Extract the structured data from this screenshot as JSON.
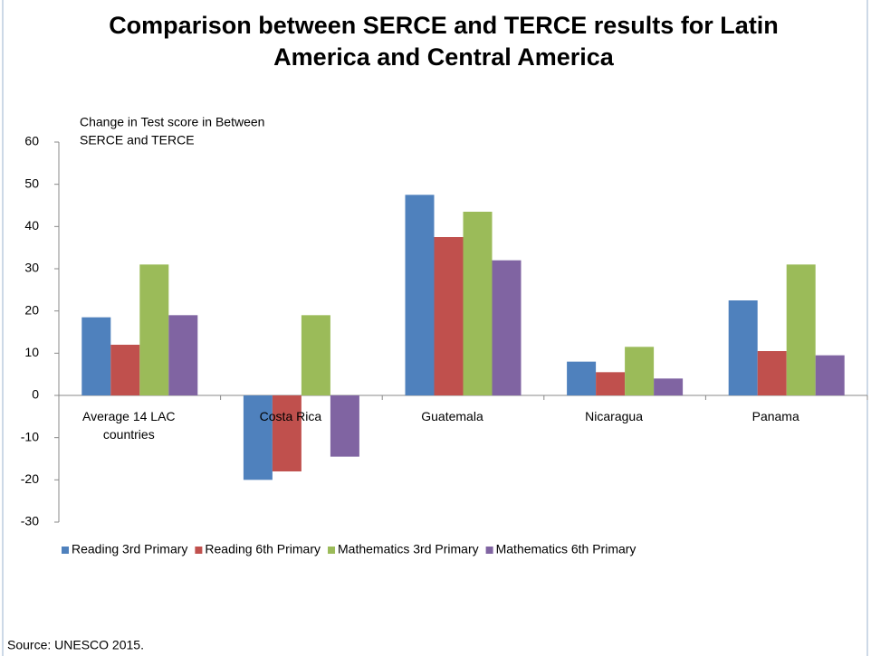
{
  "chart_data": {
    "type": "bar",
    "title": [
      "Comparison between SERCE and TERCE results for Latin",
      "America and Central America"
    ],
    "y_label": [
      "Change in Test score in Between",
      "SERCE and TERCE"
    ],
    "categories": [
      "Average 14 LAC countries",
      "Costa Rica",
      "Guatemala",
      "Nicaragua",
      "Panama"
    ],
    "series": [
      {
        "name": "Reading 3rd Primary",
        "color": "#4f81bd",
        "values": [
          18.5,
          -20,
          47.5,
          8,
          22.5
        ]
      },
      {
        "name": "Reading 6th Primary",
        "color": "#c0504d",
        "values": [
          12,
          -18,
          37.5,
          5.5,
          10.5
        ]
      },
      {
        "name": "Mathematics 3rd Primary",
        "color": "#9bbb59",
        "values": [
          31,
          19,
          43.5,
          11.5,
          31
        ]
      },
      {
        "name": "Mathematics 6th Primary",
        "color": "#8064a2",
        "values": [
          19,
          -14.5,
          32,
          4,
          9.5
        ]
      }
    ],
    "ylim": [
      -30,
      60
    ],
    "yticks": [
      -30,
      -20,
      -10,
      0,
      10,
      20,
      30,
      40,
      50,
      60
    ],
    "legend": "bottom",
    "source": "Source: UNESCO 2015."
  }
}
